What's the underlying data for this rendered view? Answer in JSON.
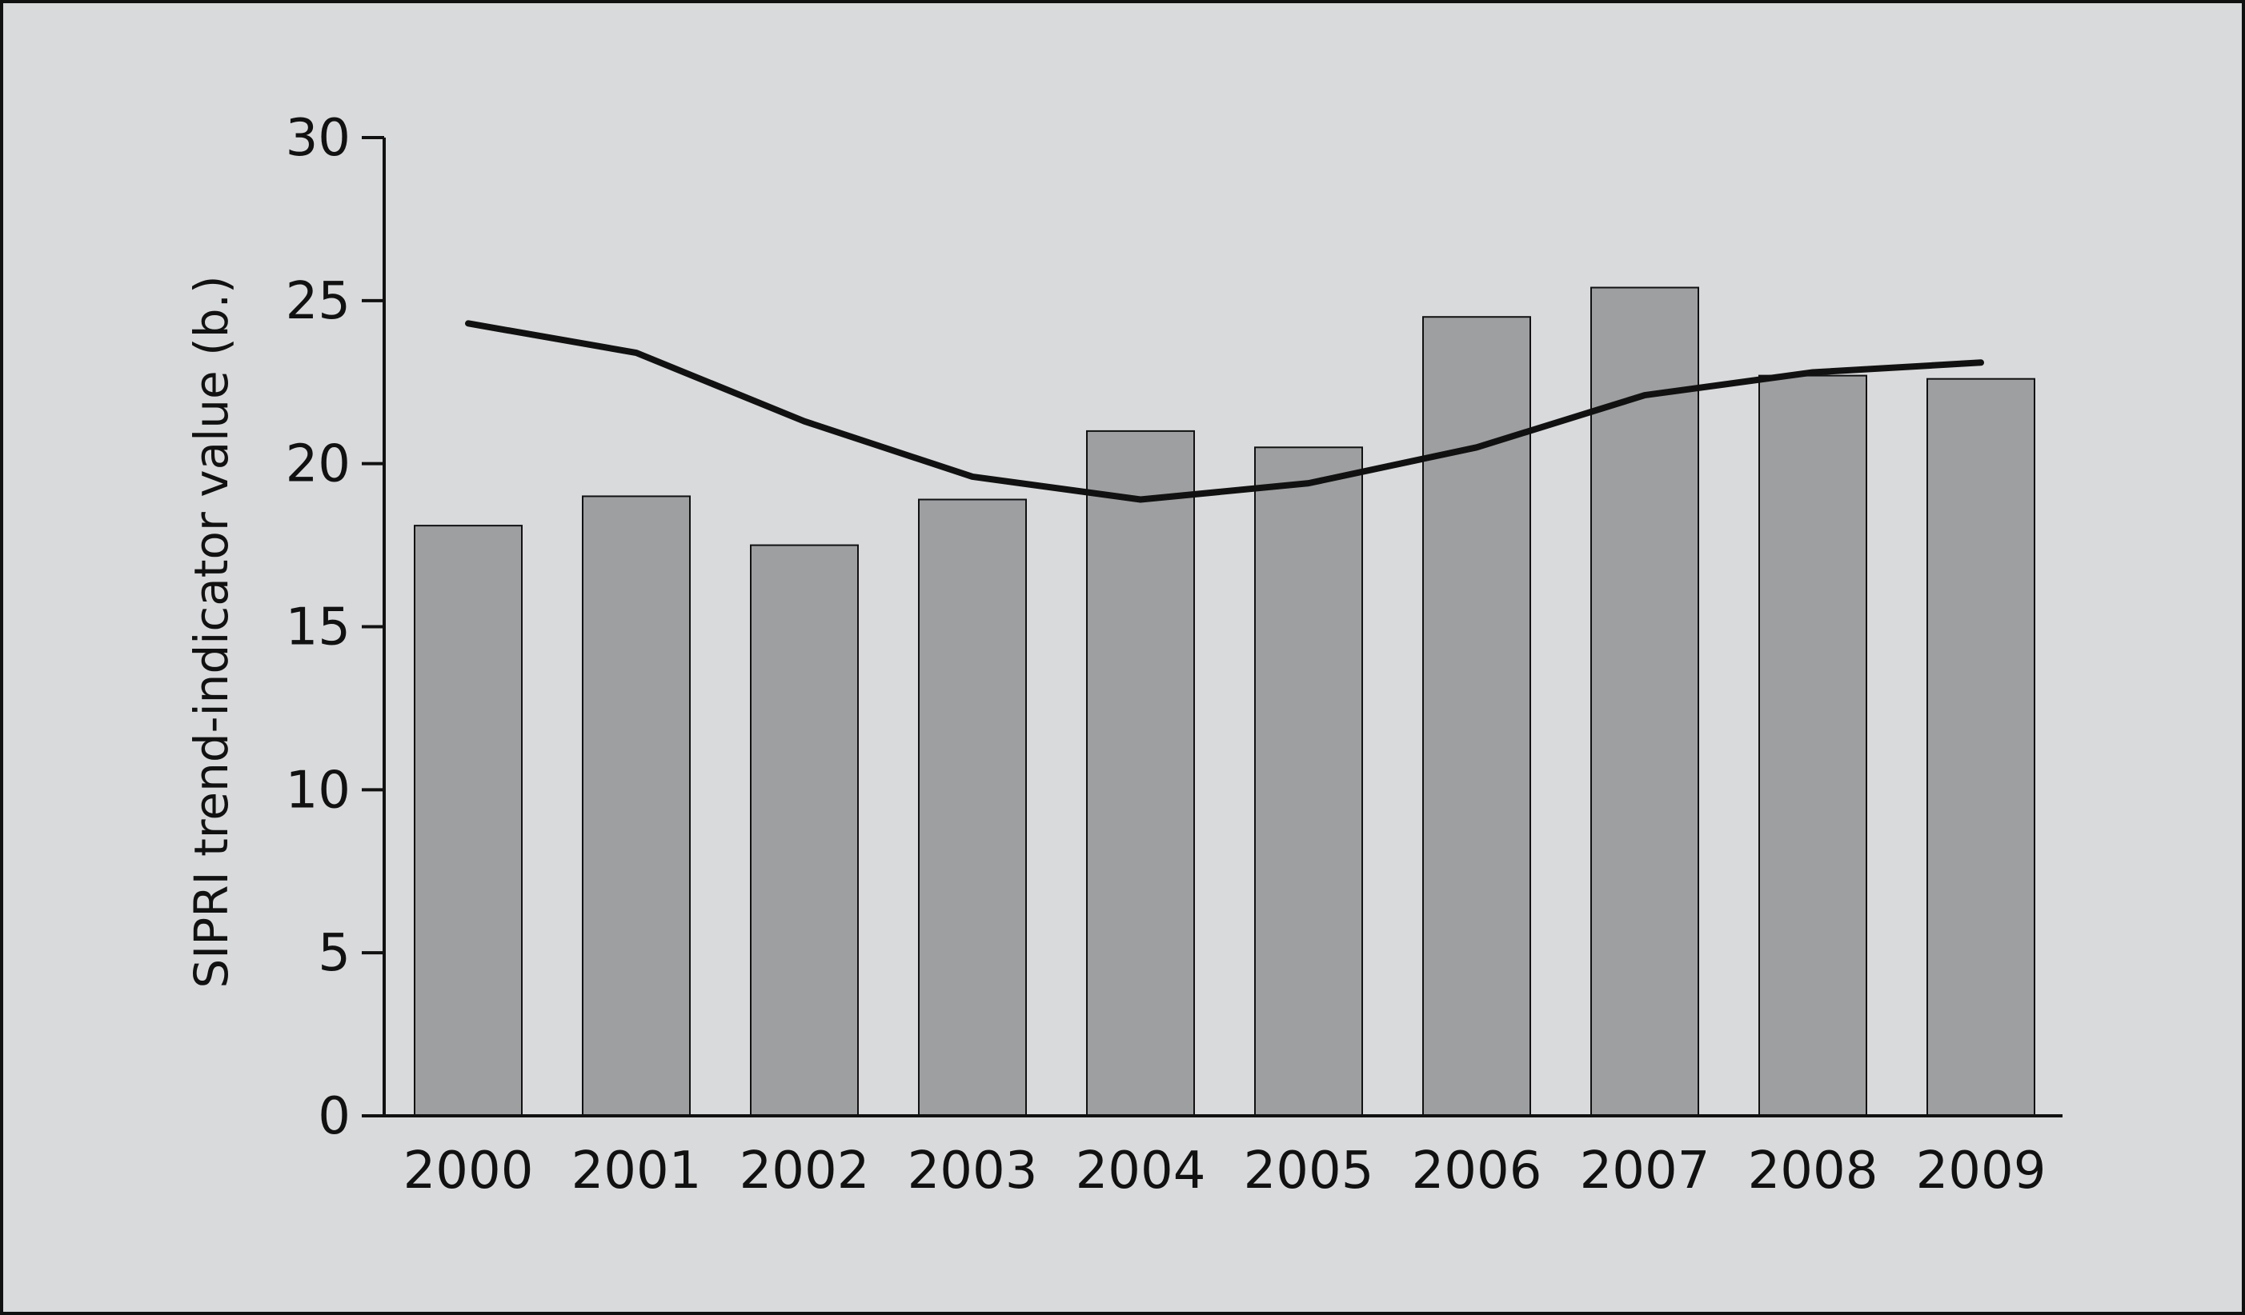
{
  "chart_data": {
    "type": "bar",
    "categories": [
      "2000",
      "2001",
      "2002",
      "2003",
      "2004",
      "2005",
      "2006",
      "2007",
      "2008",
      "2009"
    ],
    "series": [
      {
        "type": "bar",
        "values": [
          18.1,
          19.0,
          17.5,
          18.9,
          21.0,
          20.5,
          24.5,
          25.4,
          22.7,
          22.6
        ]
      },
      {
        "type": "line",
        "values": [
          24.3,
          23.4,
          21.3,
          19.6,
          18.9,
          19.4,
          20.5,
          22.1,
          22.8,
          23.1
        ]
      }
    ],
    "ylabel": "SIPRI trend-indicator value (b.)",
    "ylim": [
      0,
      30
    ],
    "yticks": [
      0,
      5,
      10,
      15,
      20,
      25,
      30
    ],
    "grid": false,
    "colors": {
      "background": "#d9dadc",
      "bar_fill": "#9e9fa1",
      "bar_stroke": "#111111",
      "line": "#111111",
      "axis": "#111111"
    }
  }
}
